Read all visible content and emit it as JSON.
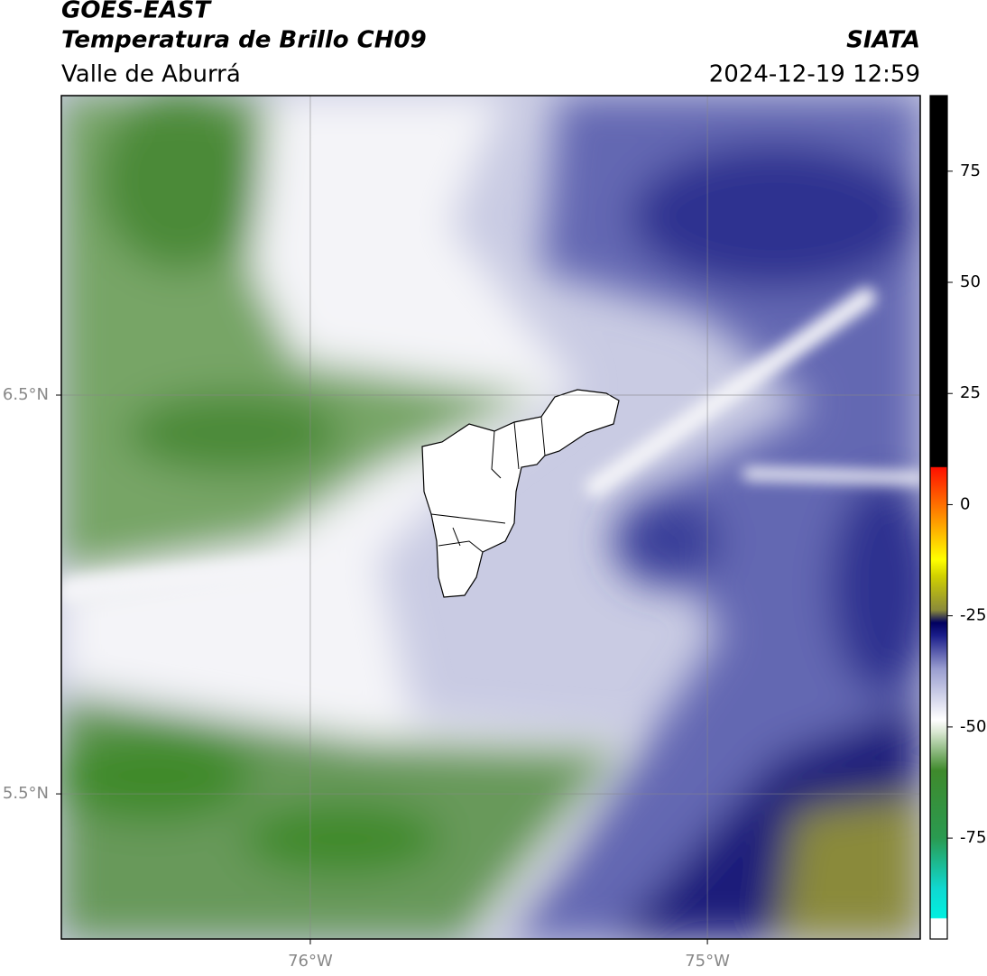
{
  "header": {
    "title": "GOES-EAST",
    "subtitle": "Temperatura de Brillo CH09",
    "region": "Valle de Aburrá",
    "source": "SIATA",
    "timestamp": "2024-12-19 12:59"
  },
  "map": {
    "lonlim": [
      -76.627,
      -74.464
    ],
    "latlim": [
      5.136,
      7.251
    ],
    "lonticks": [
      {
        "value": -76,
        "label": "76°W"
      },
      {
        "value": -75,
        "label": "75°W"
      }
    ],
    "latticks": [
      {
        "value": 6.5,
        "label": "6.5°N"
      },
      {
        "value": 5.5,
        "label": "5.5°N"
      }
    ]
  },
  "colorbar": {
    "lim": [
      -97.7,
      92
    ],
    "ticks": [
      75,
      50,
      25,
      0,
      -25,
      -50,
      -75
    ]
  }
}
